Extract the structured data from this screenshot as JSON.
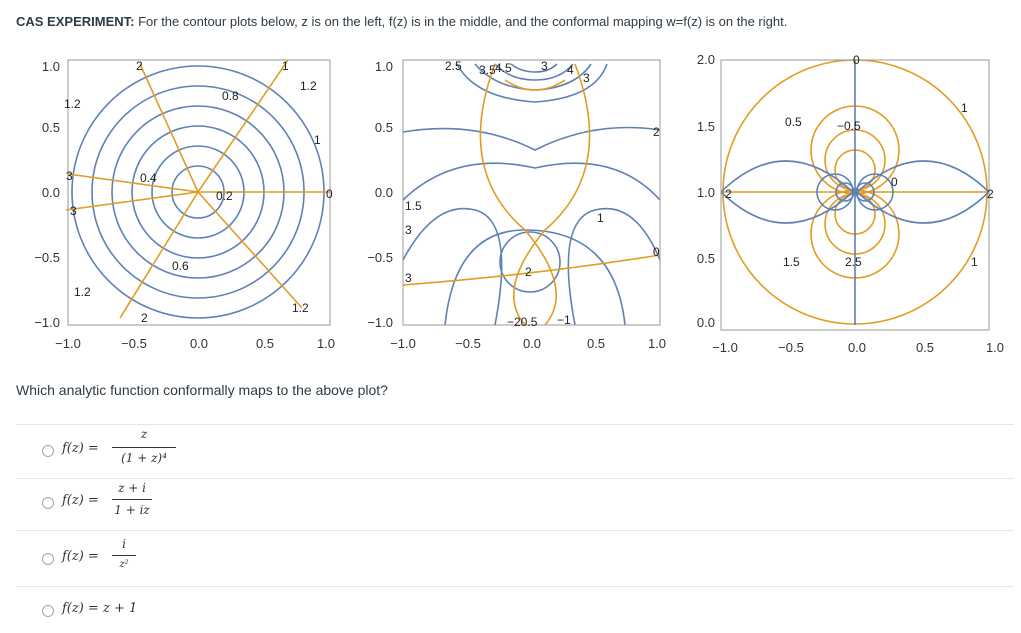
{
  "header": {
    "bold": "CAS EXPERIMENT:",
    "text": " For the contour plots below, z is on the left, f(z) is in the middle, and the conformal mapping w=f(z) is on the right."
  },
  "question": "Which analytic function conformally maps to the above plot?",
  "options": [
    {
      "lhs": "f(z) =",
      "num": "z",
      "den": "(1 + z)⁴"
    },
    {
      "lhs": "f(z) =",
      "num": "z + i",
      "den": "1 + iz"
    },
    {
      "lhs": "f(z) =",
      "num": "i",
      "den": "z²"
    },
    {
      "lhs": "f(z) = z + 1"
    }
  ],
  "colors": {
    "blue": "#5e81b5",
    "orange": "#e19c24"
  },
  "plots": {
    "left": {
      "x_ticks": [
        "−1.0",
        "−0.5",
        "0.0",
        "0.5",
        "1.0"
      ],
      "y_ticks": [
        "1.0",
        "0.5",
        "0.0",
        "−0.5",
        "−1.0"
      ],
      "labels": [
        "2",
        "1.2",
        "0.8",
        "1",
        "1.2",
        "1",
        "3",
        "0.4",
        "0.2",
        "0",
        "3",
        "0.6",
        "1.2",
        "2",
        "1.2"
      ]
    },
    "middle": {
      "x_ticks": [
        "−1.0",
        "−0.5",
        "0.0",
        "0.5",
        "1.0"
      ],
      "y_ticks": [
        "1.0",
        "0.5",
        "0.0",
        "−0.5",
        "−1.0"
      ],
      "labels": [
        "2.5",
        "3.5",
        "4.5",
        "3",
        "4",
        "3",
        "2",
        "1.5",
        "3",
        "3",
        "1",
        "0",
        "2",
        "−20.5",
        "−1"
      ]
    },
    "right": {
      "x_ticks": [
        "−1.0",
        "−0.5",
        "0.0",
        "0.5",
        "1.0"
      ],
      "y_ticks": [
        "2.0",
        "1.5",
        "1.0",
        "0.5",
        "0.0"
      ],
      "labels": [
        "0",
        "0.5",
        "−0.5",
        "1",
        "2",
        "2",
        "0",
        "1.5",
        "2.5",
        "1"
      ]
    }
  }
}
